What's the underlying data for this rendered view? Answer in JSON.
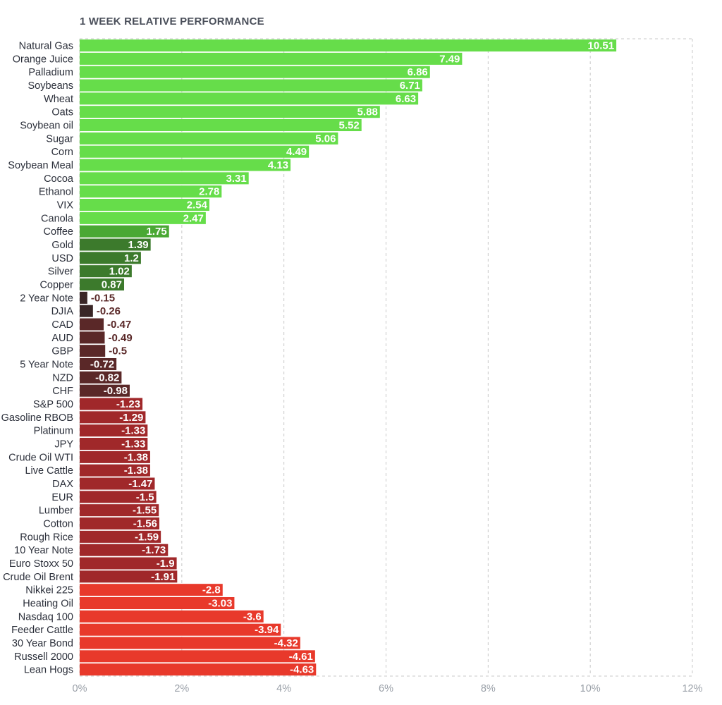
{
  "chart_data": {
    "type": "bar",
    "orientation": "horizontal",
    "title": "1 WEEK RELATIVE PERFORMANCE",
    "xlabel": "",
    "ylabel": "",
    "xlim": [
      0,
      12
    ],
    "x_ticks": [
      "0%",
      "2%",
      "4%",
      "6%",
      "8%",
      "10%",
      "12%"
    ],
    "grid": "vertical dashed",
    "categories": [
      "Natural Gas",
      "Orange Juice",
      "Palladium",
      "Soybeans",
      "Wheat",
      "Oats",
      "Soybean oil",
      "Sugar",
      "Corn",
      "Soybean Meal",
      "Cocoa",
      "Ethanol",
      "VIX",
      "Canola",
      "Coffee",
      "Gold",
      "USD",
      "Silver",
      "Copper",
      "2 Year Note",
      "DJIA",
      "CAD",
      "AUD",
      "GBP",
      "5 Year Note",
      "NZD",
      "CHF",
      "S&P 500",
      "Gasoline RBOB",
      "Platinum",
      "JPY",
      "Crude Oil WTI",
      "Live Cattle",
      "DAX",
      "EUR",
      "Lumber",
      "Cotton",
      "Rough Rice",
      "10 Year Note",
      "Euro Stoxx 50",
      "Crude Oil Brent",
      "Nikkei 225",
      "Heating Oil",
      "Nasdaq 100",
      "Feeder Cattle",
      "30 Year Bond",
      "Russell 2000",
      "Lean Hogs"
    ],
    "values": [
      10.51,
      7.49,
      6.86,
      6.71,
      6.63,
      5.88,
      5.52,
      5.06,
      4.49,
      4.13,
      3.31,
      2.78,
      2.54,
      2.47,
      1.75,
      1.39,
      1.2,
      1.02,
      0.87,
      -0.15,
      -0.26,
      -0.47,
      -0.49,
      -0.5,
      -0.72,
      -0.82,
      -0.98,
      -1.23,
      -1.29,
      -1.33,
      -1.33,
      -1.38,
      -1.38,
      -1.47,
      -1.5,
      -1.55,
      -1.56,
      -1.59,
      -1.73,
      -1.9,
      -1.91,
      -2.8,
      -3.03,
      -3.6,
      -3.94,
      -4.32,
      -4.61,
      -4.63
    ],
    "value_labels": [
      "10.51",
      "7.49",
      "6.86",
      "6.71",
      "6.63",
      "5.88",
      "5.52",
      "5.06",
      "4.49",
      "4.13",
      "3.31",
      "2.78",
      "2.54",
      "2.47",
      "1.75",
      "1.39",
      "1.2",
      "1.02",
      "0.87",
      "-0.15",
      "-0.26",
      "-0.47",
      "-0.49",
      "-0.5",
      "-0.72",
      "-0.82",
      "-0.98",
      "-1.23",
      "-1.29",
      "-1.33",
      "-1.33",
      "-1.38",
      "-1.38",
      "-1.47",
      "-1.5",
      "-1.55",
      "-1.56",
      "-1.59",
      "-1.73",
      "-1.9",
      "-1.91",
      "-2.8",
      "-3.03",
      "-3.6",
      "-3.94",
      "-4.32",
      "-4.61",
      "-4.63"
    ],
    "bars_extend_by_absolute_value": true,
    "colors": {
      "strong_positive": "#66dd4a",
      "mid_positive": "#4aa834",
      "weak_positive": "#3c7a2c",
      "near_zero_negative": "#3a2626",
      "weak_negative": "#5a2828",
      "mid_negative": "#a0282a",
      "strong_negative": "#e8392b",
      "grid": "#c8c8c8",
      "label_dark": "#2b2f3a",
      "label_light": "#ffffff"
    }
  }
}
